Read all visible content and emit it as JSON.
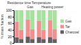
{
  "chart_data": {
    "type": "bar",
    "stacked": true,
    "y_label": "% mass fraction",
    "categories": [
      "Residence time",
      null,
      "Gas",
      null,
      "Temperature",
      null,
      "Heating power",
      null
    ],
    "series": [
      {
        "name": "Charcoal",
        "color": "#606060",
        "values": [
          17,
          12,
          20,
          12,
          18,
          12,
          18,
          12
        ]
      },
      {
        "name": "Tar",
        "color": "#f09090",
        "values": [
          48,
          28,
          52,
          30,
          50,
          28,
          52,
          30
        ]
      },
      {
        "name": "Gas",
        "color": "#a8e0a0",
        "values": [
          35,
          60,
          28,
          58,
          32,
          60,
          30,
          58
        ]
      }
    ],
    "ylim": [
      0,
      100
    ],
    "yticks": [
      0,
      20,
      40,
      60,
      80,
      100
    ],
    "legend": "right"
  }
}
